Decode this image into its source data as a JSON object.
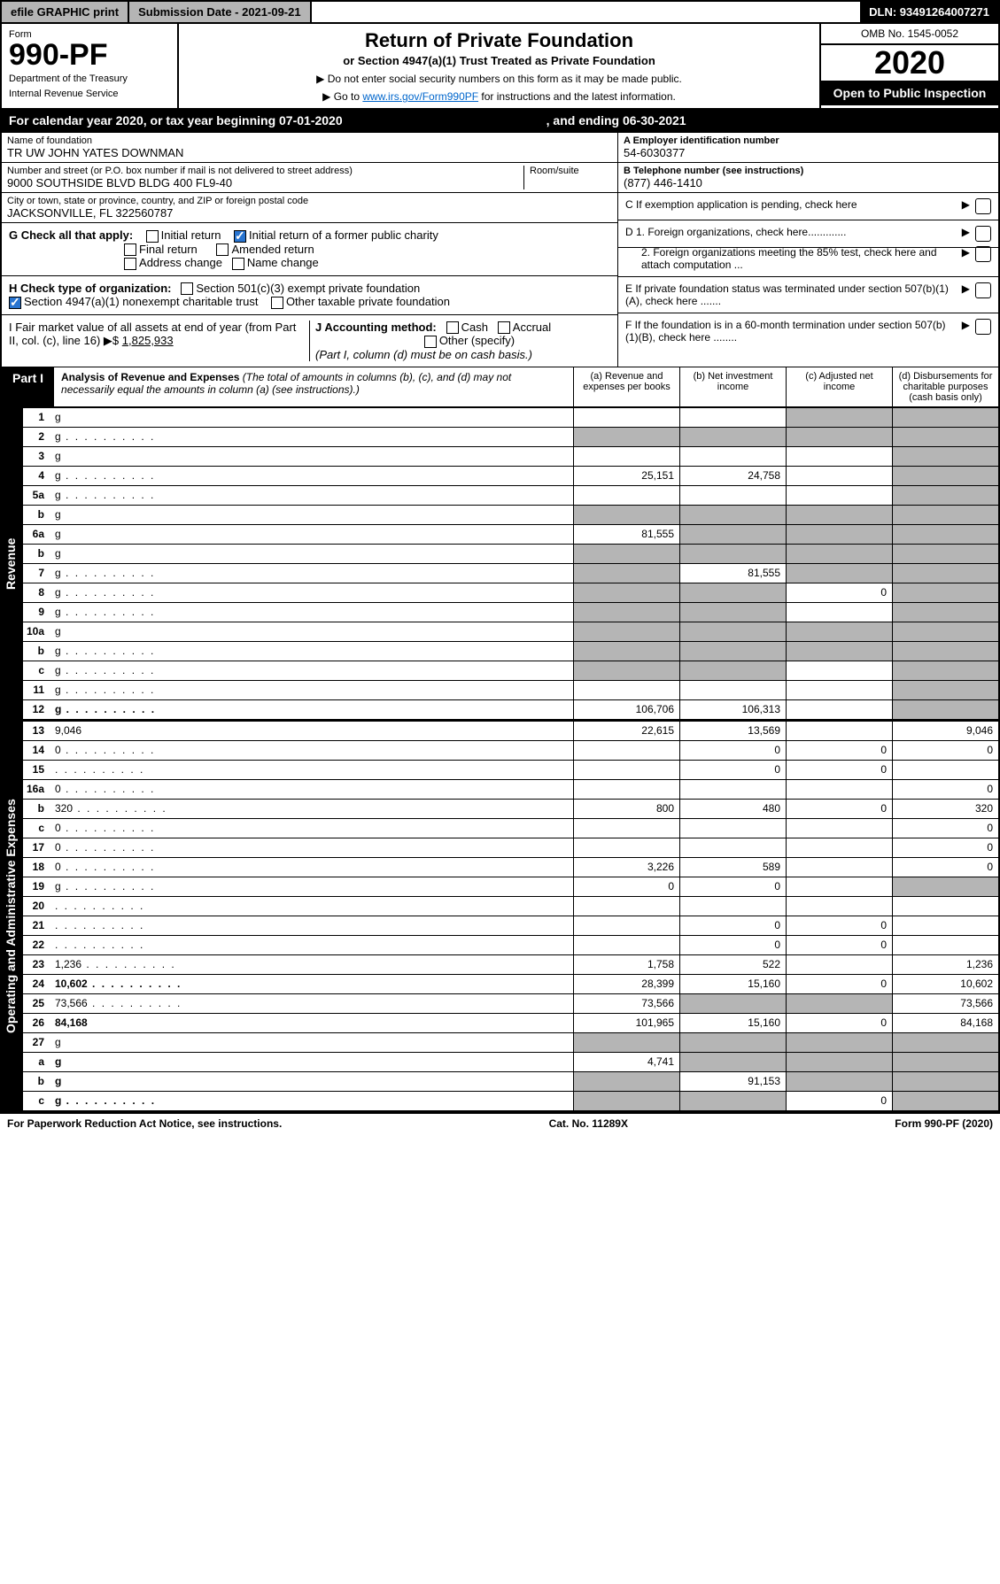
{
  "topbar": {
    "efile": "efile GRAPHIC print",
    "submission": "Submission Date - 2021-09-21",
    "dln": "DLN: 93491264007271"
  },
  "header": {
    "form_label": "Form",
    "form_number": "990-PF",
    "dept1": "Department of the Treasury",
    "dept2": "Internal Revenue Service",
    "title": "Return of Private Foundation",
    "subtitle": "or Section 4947(a)(1) Trust Treated as Private Foundation",
    "instr1": "▶ Do not enter social security numbers on this form as it may be made public.",
    "instr2_a": "▶ Go to ",
    "instr2_link": "www.irs.gov/Form990PF",
    "instr2_b": " for instructions and the latest information.",
    "omb": "OMB No. 1545-0052",
    "year": "2020",
    "open": "Open to Public Inspection"
  },
  "calyear": {
    "a": "For calendar year 2020, or tax year beginning 07-01-2020",
    "b": ", and ending 06-30-2021"
  },
  "info": {
    "name_lbl": "Name of foundation",
    "name": "TR UW JOHN YATES DOWNMAN",
    "addr_lbl": "Number and street (or P.O. box number if mail is not delivered to street address)",
    "addr": "9000 SOUTHSIDE BLVD BLDG 400 FL9-40",
    "room_lbl": "Room/suite",
    "city_lbl": "City or town, state or province, country, and ZIP or foreign postal code",
    "city": "JACKSONVILLE, FL  322560787",
    "ein_lbl": "A Employer identification number",
    "ein": "54-6030377",
    "tel_lbl": "B Telephone number (see instructions)",
    "tel": "(877) 446-1410",
    "c": "C  If exemption application is pending, check here",
    "d1": "D 1. Foreign organizations, check here.............",
    "d2": "2. Foreign organizations meeting the 85% test, check here and attach computation ...",
    "e": "E  If private foundation status was terminated under section 507(b)(1)(A), check here .......",
    "f": "F  If the foundation is in a 60-month termination under section 507(b)(1)(B), check here ........"
  },
  "g": {
    "lbl": "G Check all that apply:",
    "initial": "Initial return",
    "initial_former": "Initial return of a former public charity",
    "final": "Final return",
    "amended": "Amended return",
    "address": "Address change",
    "name_change": "Name change"
  },
  "h": {
    "lbl": "H Check type of organization:",
    "s501": "Section 501(c)(3) exempt private foundation",
    "s4947": "Section 4947(a)(1) nonexempt charitable trust",
    "other": "Other taxable private foundation"
  },
  "i": {
    "lbl": "I Fair market value of all assets at end of year (from Part II, col. (c), line 16) ▶$",
    "val": "1,825,933"
  },
  "j": {
    "lbl": "J Accounting method:",
    "cash": "Cash",
    "accrual": "Accrual",
    "other": "Other (specify)",
    "note": "(Part I, column (d) must be on cash basis.)"
  },
  "part1": {
    "label": "Part I",
    "title": "Analysis of Revenue and Expenses",
    "note": " (The total of amounts in columns (b), (c), and (d) may not necessarily equal the amounts in column (a) (see instructions).)",
    "cols": {
      "a": "(a)   Revenue and expenses per books",
      "b": "(b)   Net investment income",
      "c": "(c)   Adjusted net income",
      "d": "(d)   Disbursements for charitable purposes (cash basis only)"
    }
  },
  "sections": {
    "revenue": "Revenue",
    "expenses": "Operating and Administrative Expenses"
  },
  "rows": [
    {
      "n": "1",
      "d": "g",
      "a": "",
      "b": "",
      "c": "g"
    },
    {
      "n": "2",
      "d": "g",
      "a": "g",
      "b": "g",
      "c": "g",
      "dots": 1
    },
    {
      "n": "3",
      "d": "g",
      "a": "",
      "b": "",
      "c": ""
    },
    {
      "n": "4",
      "d": "g",
      "a": "25,151",
      "b": "24,758",
      "c": "",
      "dots": 1
    },
    {
      "n": "5a",
      "d": "g",
      "a": "",
      "b": "",
      "c": "",
      "dots": 1
    },
    {
      "n": "b",
      "d": "g",
      "a": "g",
      "b": "g",
      "c": "g"
    },
    {
      "n": "6a",
      "d": "g",
      "a": "81,555",
      "b": "g",
      "c": "g"
    },
    {
      "n": "b",
      "d": "g",
      "a": "g",
      "b": "g",
      "c": "g"
    },
    {
      "n": "7",
      "d": "g",
      "a": "g",
      "b": "81,555",
      "c": "g",
      "dots": 1
    },
    {
      "n": "8",
      "d": "g",
      "a": "g",
      "b": "g",
      "c": "0",
      "dots": 1
    },
    {
      "n": "9",
      "d": "g",
      "a": "g",
      "b": "g",
      "c": "",
      "dots": 1
    },
    {
      "n": "10a",
      "d": "g",
      "a": "g",
      "b": "g",
      "c": "g"
    },
    {
      "n": "b",
      "d": "g",
      "a": "g",
      "b": "g",
      "c": "g",
      "dots": 1
    },
    {
      "n": "c",
      "d": "g",
      "a": "g",
      "b": "g",
      "c": "",
      "dots": 1
    },
    {
      "n": "11",
      "d": "g",
      "a": "",
      "b": "",
      "c": "",
      "dots": 1
    },
    {
      "n": "12",
      "d": "g",
      "a": "106,706",
      "b": "106,313",
      "c": "",
      "bold": 1,
      "dots": 1
    }
  ],
  "exp_rows": [
    {
      "n": "13",
      "d": "9,046",
      "a": "22,615",
      "b": "13,569",
      "c": ""
    },
    {
      "n": "14",
      "d": "0",
      "a": "",
      "b": "0",
      "c": "0",
      "dots": 1
    },
    {
      "n": "15",
      "d": "",
      "a": "",
      "b": "0",
      "c": "0",
      "dots": 1
    },
    {
      "n": "16a",
      "d": "0",
      "a": "",
      "b": "",
      "c": "",
      "dots": 1
    },
    {
      "n": "b",
      "d": "320",
      "a": "800",
      "b": "480",
      "c": "0",
      "dots": 1
    },
    {
      "n": "c",
      "d": "0",
      "a": "",
      "b": "",
      "c": "",
      "dots": 1
    },
    {
      "n": "17",
      "d": "0",
      "a": "",
      "b": "",
      "c": "",
      "dots": 1
    },
    {
      "n": "18",
      "d": "0",
      "a": "3,226",
      "b": "589",
      "c": "",
      "dots": 1
    },
    {
      "n": "19",
      "d": "g",
      "a": "0",
      "b": "0",
      "c": "",
      "dots": 1
    },
    {
      "n": "20",
      "d": "",
      "a": "",
      "b": "",
      "c": "",
      "dots": 1
    },
    {
      "n": "21",
      "d": "",
      "a": "",
      "b": "0",
      "c": "0",
      "dots": 1
    },
    {
      "n": "22",
      "d": "",
      "a": "",
      "b": "0",
      "c": "0",
      "dots": 1
    },
    {
      "n": "23",
      "d": "1,236",
      "a": "1,758",
      "b": "522",
      "c": "",
      "dots": 1
    },
    {
      "n": "24",
      "d": "10,602",
      "a": "28,399",
      "b": "15,160",
      "c": "0",
      "bold": 1,
      "dots": 1
    },
    {
      "n": "25",
      "d": "73,566",
      "a": "73,566",
      "b": "g",
      "c": "g",
      "dots": 1
    },
    {
      "n": "26",
      "d": "84,168",
      "a": "101,965",
      "b": "15,160",
      "c": "0",
      "bold": 1
    },
    {
      "n": "27",
      "d": "g",
      "a": "g",
      "b": "g",
      "c": "g"
    },
    {
      "n": "a",
      "d": "g",
      "a": "4,741",
      "b": "g",
      "c": "g",
      "bold": 1
    },
    {
      "n": "b",
      "d": "g",
      "a": "g",
      "b": "91,153",
      "c": "g",
      "bold": 1
    },
    {
      "n": "c",
      "d": "g",
      "a": "g",
      "b": "g",
      "c": "0",
      "bold": 1,
      "dots": 1
    }
  ],
  "footer": {
    "left": "For Paperwork Reduction Act Notice, see instructions.",
    "mid": "Cat. No. 11289X",
    "right": "Form 990-PF (2020)"
  }
}
